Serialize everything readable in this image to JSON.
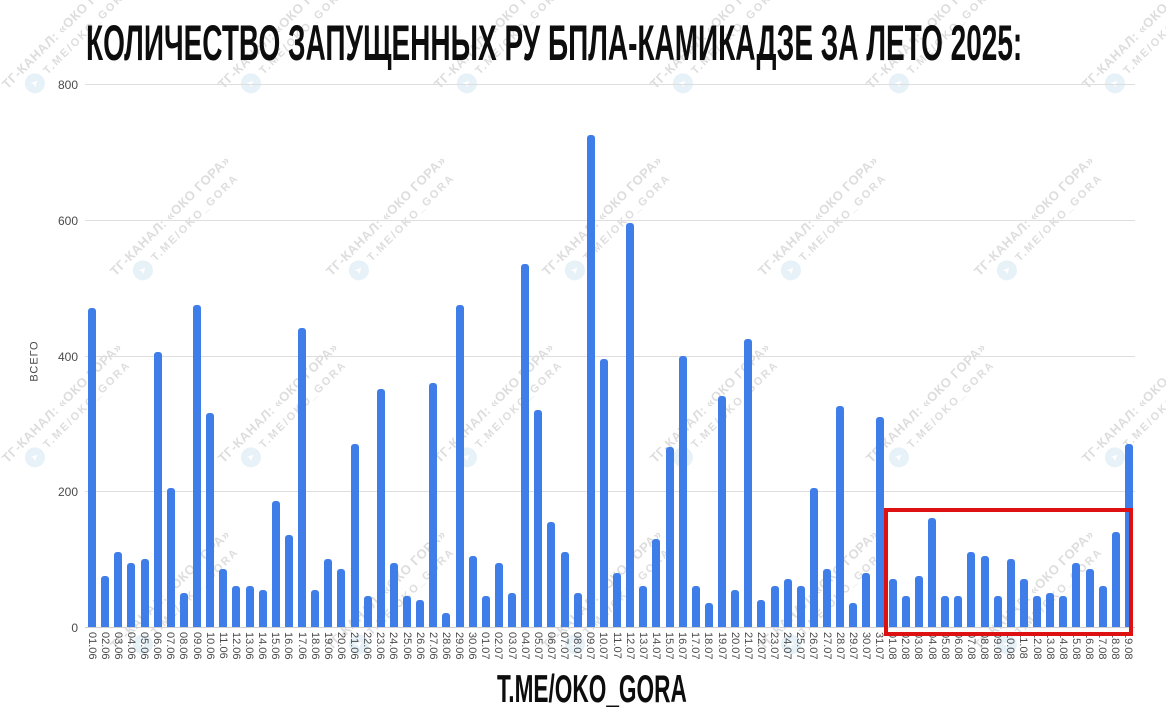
{
  "title": "КОЛИЧЕСТВО ЗАПУЩЕННЫХ РУ БПЛА-КАМИКАДЗЕ ЗА ЛЕТО 2025:",
  "footer": "T.ME/OKO_GORA",
  "watermark": {
    "line1": "ТГ-КАНАЛ: «ОКО ГОРА»",
    "line2": "T.ME/OKO_GORA",
    "plane_icon": "➤"
  },
  "colors": {
    "bar": "#3f7ee8",
    "highlight_box": "#dd1111",
    "grid": "#dedede",
    "baseline": "#cfcfcf",
    "axis_text": "#4a4a4a",
    "title_text": "#0d0d0d",
    "watermark_text": "#bdbdbd",
    "watermark_circle": "#cfe4f2"
  },
  "chart_data": {
    "type": "bar",
    "title": "КОЛИЧЕСТВО ЗАПУЩЕННЫХ РУ БПЛА-КАМИКАДЗЕ ЗА ЛЕТО 2025:",
    "xlabel": "",
    "ylabel": "ВСЕГО",
    "ylim": [
      0,
      800
    ],
    "yticks": [
      0,
      200,
      400,
      600,
      800
    ],
    "grid": true,
    "legend": "none",
    "highlight_range": {
      "from": "01.08",
      "to": "18.08",
      "top_value": 175
    },
    "categories": [
      "01.06",
      "02.06",
      "03.06",
      "04.06",
      "05.06",
      "06.06",
      "07.06",
      "08.06",
      "09.06",
      "10.06",
      "11.06",
      "12.06",
      "13.06",
      "14.06",
      "15.06",
      "16.06",
      "17.06",
      "18.06",
      "19.06",
      "20.06",
      "21.06",
      "22.06",
      "23.06",
      "24.06",
      "25.06",
      "26.06",
      "27.06",
      "28.06",
      "29.06",
      "30.06",
      "01.07",
      "02.07",
      "03.07",
      "04.07",
      "05.07",
      "06.07",
      "07.07",
      "08.07",
      "09.07",
      "10.07",
      "11.07",
      "12.07",
      "13.07",
      "14.07",
      "15.07",
      "16.07",
      "17.07",
      "18.07",
      "19.07",
      "20.07",
      "21.07",
      "22.07",
      "23.07",
      "24.07",
      "25.07",
      "26.07",
      "27.07",
      "28.07",
      "29.07",
      "30.07",
      "31.07",
      "01.08",
      "02.08",
      "03.08",
      "04.08",
      "05.08",
      "06.08",
      "07.08",
      "08.08",
      "09.08",
      "10.08",
      "11.08",
      "12.08",
      "13.08",
      "14.08",
      "15.08",
      "16.08",
      "17.08",
      "18.08",
      "19.08"
    ],
    "values": [
      470,
      75,
      110,
      95,
      100,
      405,
      205,
      50,
      475,
      315,
      85,
      60,
      60,
      55,
      185,
      135,
      440,
      55,
      100,
      85,
      270,
      45,
      350,
      95,
      45,
      40,
      360,
      20,
      475,
      105,
      45,
      95,
      50,
      535,
      320,
      155,
      110,
      50,
      725,
      395,
      80,
      595,
      60,
      130,
      265,
      400,
      60,
      35,
      340,
      55,
      425,
      40,
      60,
      70,
      60,
      205,
      85,
      325,
      35,
      80,
      310,
      70,
      45,
      75,
      160,
      45,
      45,
      110,
      105,
      45,
      100,
      70,
      45,
      50,
      45,
      95,
      85,
      60,
      140,
      270
    ]
  }
}
